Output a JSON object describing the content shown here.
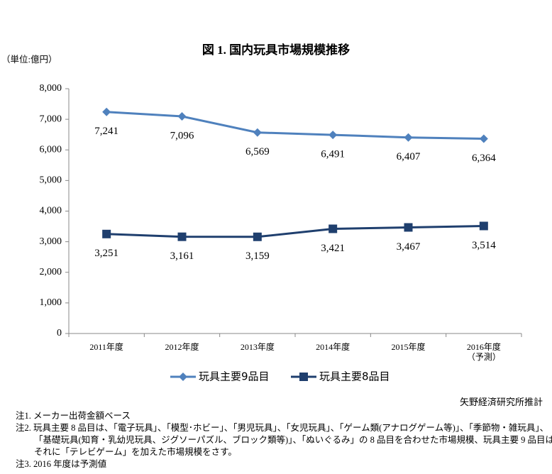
{
  "chart_data": {
    "type": "line",
    "title": "図 1. 国内玩具市場規模推移",
    "unit_label": "（単位:億円）",
    "categories": [
      "2011年度",
      "2012年度",
      "2013年度",
      "2014年度",
      "2015年度",
      "2016年度\n（予測）"
    ],
    "series": [
      {
        "name": "玩具主要9品目",
        "color": "#4f81bd",
        "marker": "diamond",
        "values": [
          7241,
          7096,
          6569,
          6491,
          6407,
          6364
        ],
        "value_labels": [
          "7,241",
          "7,096",
          "6,569",
          "6,491",
          "6,407",
          "6,364"
        ]
      },
      {
        "name": "玩具主要8品目",
        "color": "#1f3f6e",
        "marker": "square",
        "values": [
          3251,
          3161,
          3159,
          3421,
          3467,
          3514
        ],
        "value_labels": [
          "3,251",
          "3,161",
          "3,159",
          "3,421",
          "3,467",
          "3,514"
        ]
      }
    ],
    "ylim": [
      0,
      8000
    ],
    "yticks": [
      0,
      {
        "value": 1000,
        "label": "1,000"
      },
      {
        "value": 2000,
        "label": "2,000"
      },
      {
        "value": 3000,
        "label": "3,000"
      },
      {
        "value": 4000,
        "label": "4,000"
      },
      {
        "value": 5000,
        "label": "5,000"
      },
      {
        "value": 6000,
        "label": "6,000"
      },
      {
        "value": 7000,
        "label": "7,000"
      },
      {
        "value": 8000,
        "label": "8,000"
      }
    ],
    "grid": false,
    "legend": "bottom",
    "source": "矢野経済研究所推計",
    "notes": [
      "注1. メーカー出荷金額ベース",
      "注2. 玩具主要 8 品目は、「電子玩具」、「模型･ホビー」、「男児玩具」、「女児玩具」、「ゲーム類(アナログゲーム等)」、「季節物・雑玩具」、「基礎玩具(知育・乳幼児玩具、ジグソーパズル、ブロック類等)」、「ぬいぐるみ」の 8 品目を合わせた市場規模、玩具主要 9 品目はそれに「テレビゲーム」を加えた市場規模をさす。",
      "注3. 2016 年度は予測値"
    ]
  }
}
